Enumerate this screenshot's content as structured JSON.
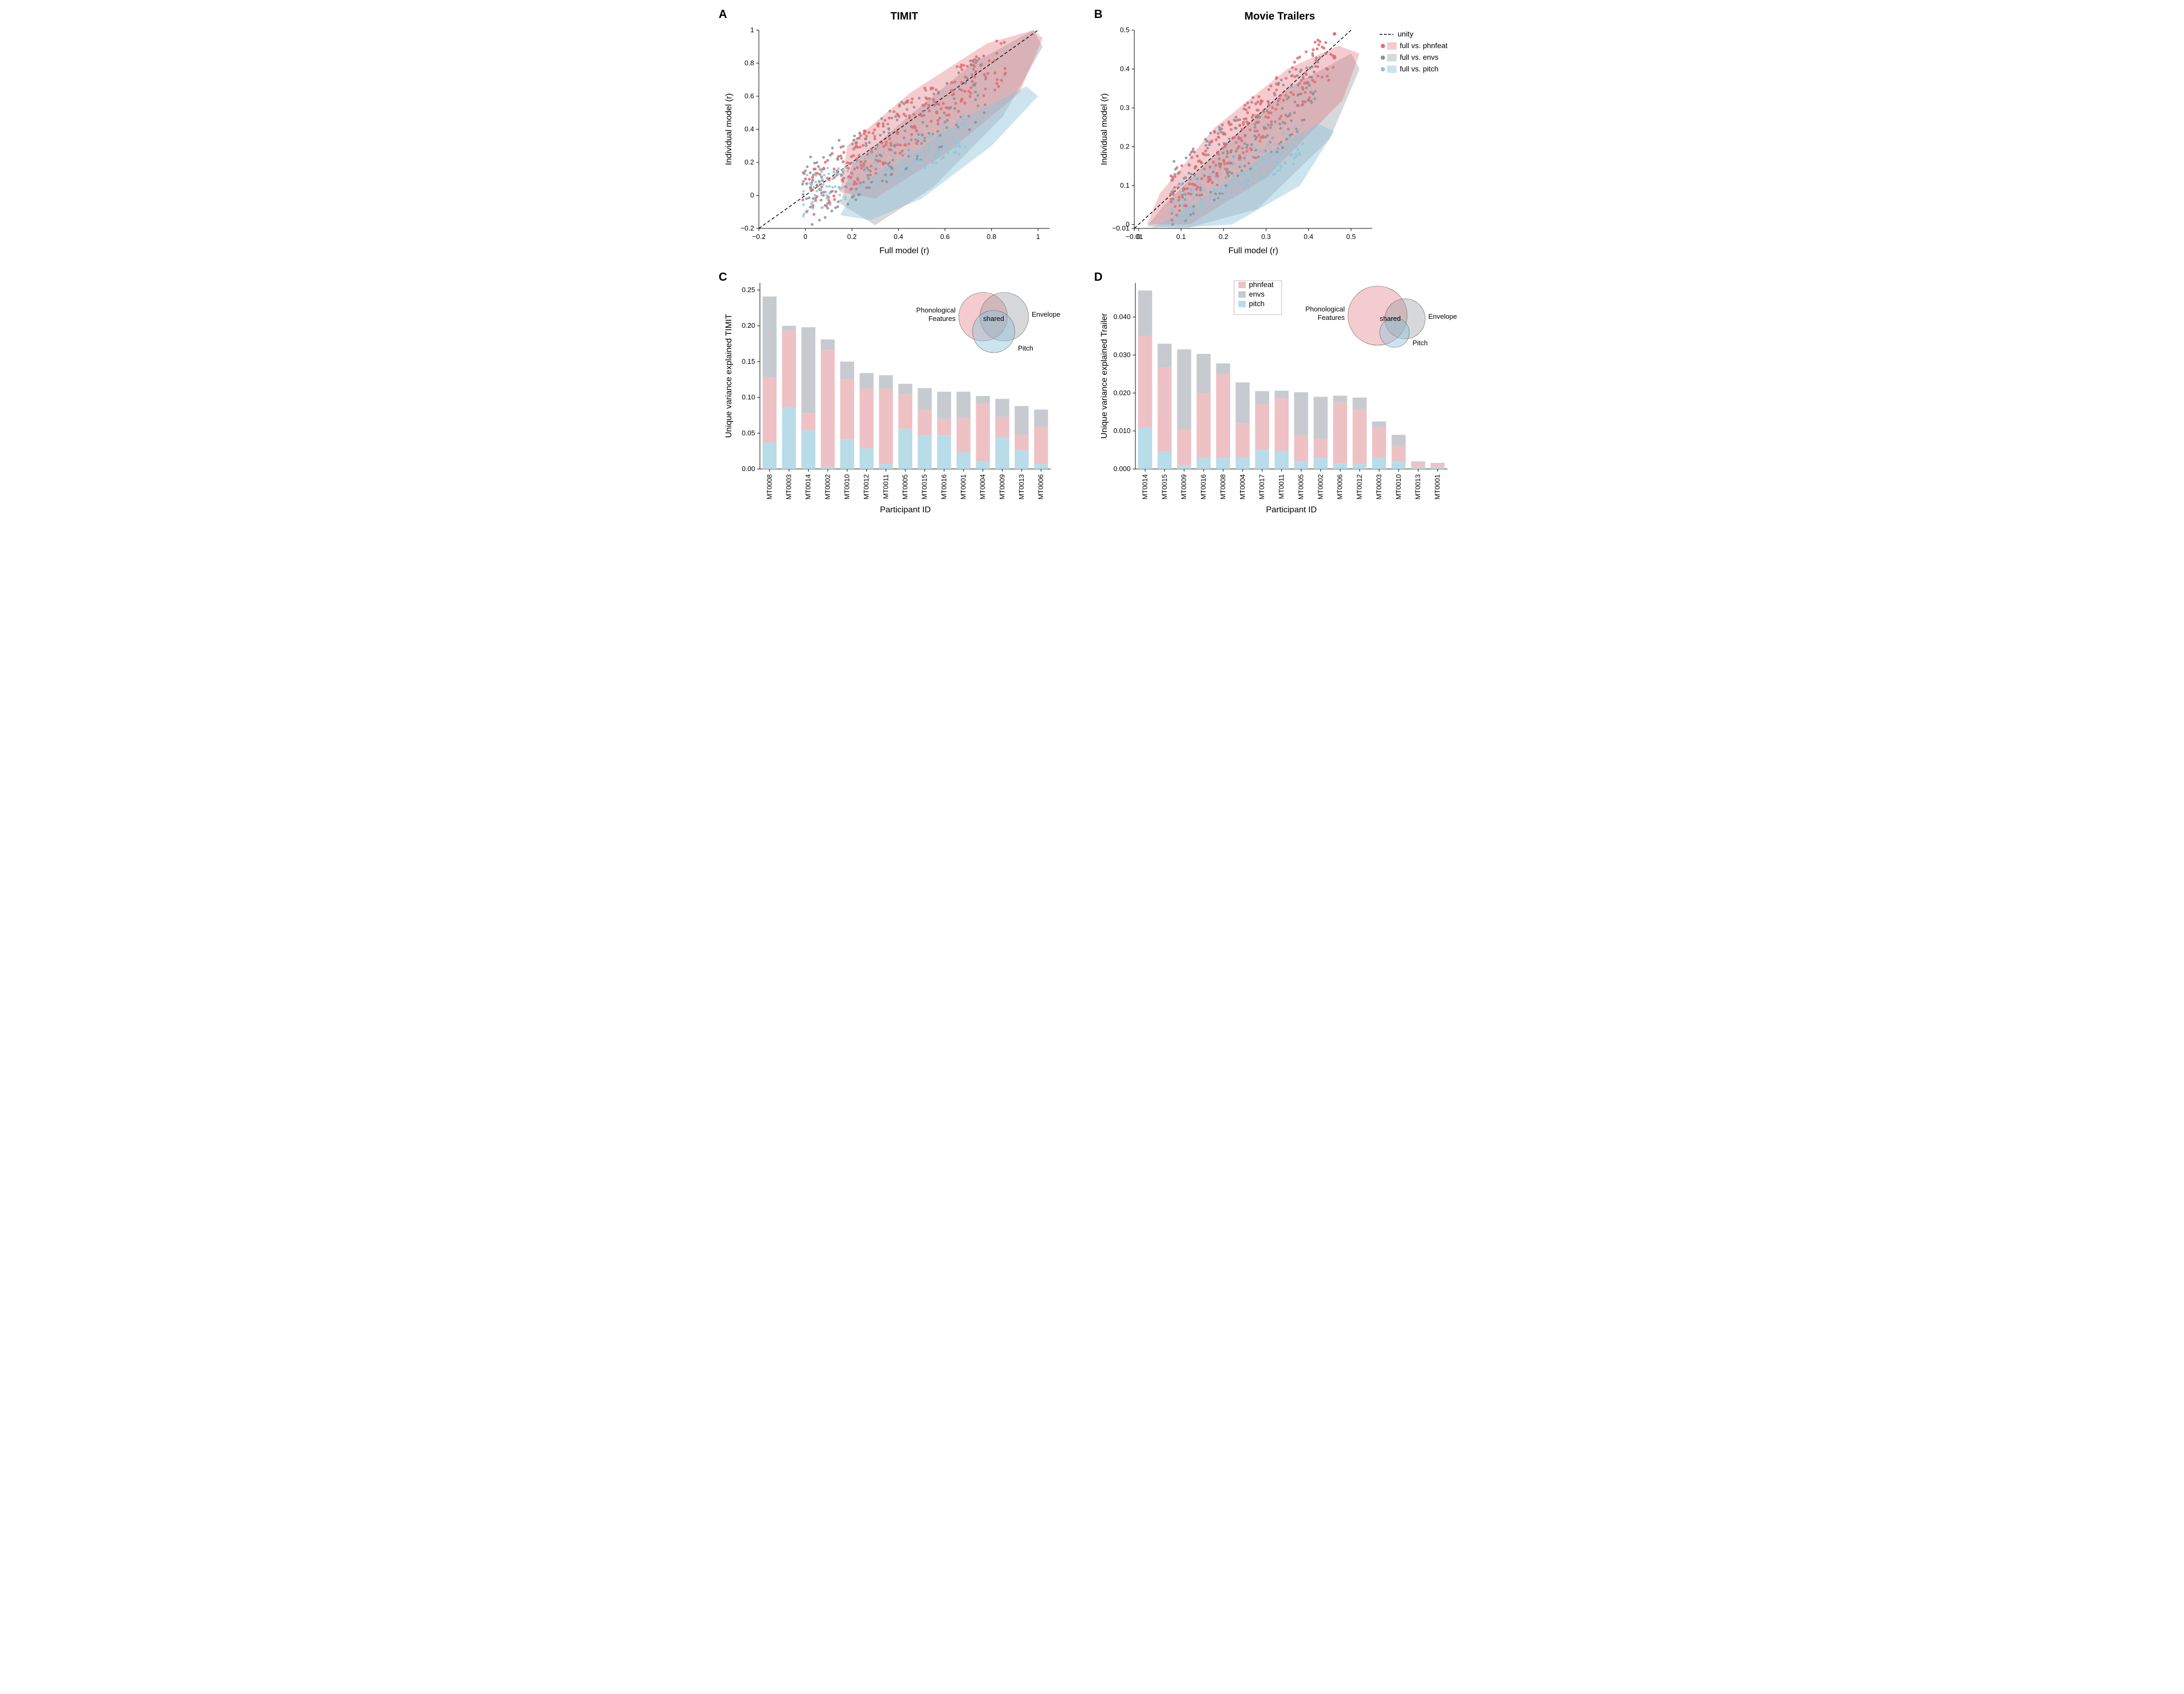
{
  "colors": {
    "phnfeat": "#e06c75",
    "phnfeat_fill": "rgba(224,108,117,0.35)",
    "envs": "#8a8f94",
    "envs_fill": "rgba(138,143,148,0.35)",
    "pitch": "#8fc4d9",
    "pitch_fill": "rgba(143,196,217,0.45)",
    "unity": "#000000",
    "grid": "#ffffff",
    "background": "#ffffff",
    "text": "#000000"
  },
  "legend_scatter": {
    "unity": "unity",
    "phnfeat": "full vs. phnfeat",
    "envs": "full vs. envs",
    "pitch": "full vs. pitch"
  },
  "legend_bar": {
    "phnfeat": "phnfeat",
    "envs": "envs",
    "pitch": "pitch"
  },
  "panels": {
    "A": {
      "label": "A",
      "title": "TIMIT",
      "type": "scatter",
      "xlabel": "Full model (r)",
      "ylabel": "Individual model (r)",
      "xlim": [
        -0.2,
        1.05
      ],
      "ylim": [
        -0.2,
        1.0
      ],
      "xticks": [
        -0.2,
        0.0,
        0.2,
        0.4,
        0.6,
        0.8,
        1.0
      ],
      "yticks": [
        -0.2,
        0.0,
        0.2,
        0.4,
        0.6,
        0.8,
        1.0
      ],
      "hull_phnfeat": [
        [
          0.15,
          0.02
        ],
        [
          0.18,
          0.3
        ],
        [
          0.45,
          0.62
        ],
        [
          0.78,
          0.92
        ],
        [
          0.98,
          1.0
        ],
        [
          1.02,
          0.95
        ],
        [
          0.92,
          0.62
        ],
        [
          0.62,
          0.27
        ],
        [
          0.3,
          -0.02
        ]
      ],
      "hull_envs": [
        [
          0.15,
          -0.05
        ],
        [
          0.2,
          0.18
        ],
        [
          0.42,
          0.45
        ],
        [
          0.72,
          0.8
        ],
        [
          0.98,
          1.0
        ],
        [
          1.02,
          0.9
        ],
        [
          0.85,
          0.48
        ],
        [
          0.55,
          0.05
        ],
        [
          0.3,
          -0.18
        ]
      ],
      "hull_pitch": [
        [
          0.15,
          -0.12
        ],
        [
          0.22,
          0.06
        ],
        [
          0.42,
          0.22
        ],
        [
          0.7,
          0.48
        ],
        [
          0.95,
          0.66
        ],
        [
          1.0,
          0.6
        ],
        [
          0.8,
          0.3
        ],
        [
          0.5,
          -0.02
        ],
        [
          0.28,
          -0.15
        ]
      ]
    },
    "B": {
      "label": "B",
      "title": "Movie Trailers",
      "type": "scatter",
      "xlabel": "Full model (r)",
      "ylabel": "Individual model (r)",
      "xlim": [
        -0.01,
        0.55
      ],
      "ylim": [
        -0.01,
        0.5
      ],
      "xticks": [
        -0.01,
        0.0,
        0.1,
        0.2,
        0.3,
        0.4,
        0.5
      ],
      "yticks": [
        -0.01,
        0.0,
        0.1,
        0.2,
        0.3,
        0.4,
        0.5
      ],
      "hull_phnfeat": [
        [
          0.02,
          0.0
        ],
        [
          0.05,
          0.08
        ],
        [
          0.18,
          0.25
        ],
        [
          0.35,
          0.4
        ],
        [
          0.47,
          0.46
        ],
        [
          0.52,
          0.44
        ],
        [
          0.48,
          0.32
        ],
        [
          0.3,
          0.12
        ],
        [
          0.12,
          0.0
        ]
      ],
      "hull_envs": [
        [
          0.02,
          -0.005
        ],
        [
          0.06,
          0.05
        ],
        [
          0.18,
          0.18
        ],
        [
          0.35,
          0.35
        ],
        [
          0.5,
          0.44
        ],
        [
          0.52,
          0.4
        ],
        [
          0.45,
          0.22
        ],
        [
          0.28,
          0.04
        ],
        [
          0.12,
          -0.008
        ]
      ],
      "hull_pitch": [
        [
          0.03,
          -0.008
        ],
        [
          0.08,
          0.02
        ],
        [
          0.18,
          0.09
        ],
        [
          0.3,
          0.18
        ],
        [
          0.42,
          0.26
        ],
        [
          0.46,
          0.24
        ],
        [
          0.38,
          0.1
        ],
        [
          0.22,
          0.0
        ],
        [
          0.1,
          -0.008
        ]
      ]
    },
    "C": {
      "label": "C",
      "type": "stacked-bar",
      "xlabel": "Participant ID",
      "ylabel": "Unique variance explained TIMIT",
      "ylim": [
        0,
        0.26
      ],
      "yticks": [
        0.0,
        0.05,
        0.1,
        0.15,
        0.2,
        0.25
      ],
      "categories": [
        "MT0008",
        "MT0003",
        "MT0014",
        "MT0002",
        "MT0010",
        "MT0012",
        "MT0011",
        "MT0005",
        "MT0015",
        "MT0016",
        "MT0001",
        "MT0004",
        "MT0009",
        "MT0013",
        "MT0006"
      ],
      "series": {
        "pitch": [
          0.037,
          0.086,
          0.054,
          0.003,
          0.042,
          0.029,
          0.007,
          0.056,
          0.047,
          0.047,
          0.023,
          0.011,
          0.044,
          0.026,
          0.007
        ],
        "phnfeat": [
          0.091,
          0.107,
          0.024,
          0.163,
          0.083,
          0.083,
          0.105,
          0.048,
          0.035,
          0.023,
          0.048,
          0.08,
          0.029,
          0.022,
          0.052
        ],
        "envs": [
          0.113,
          0.007,
          0.12,
          0.015,
          0.025,
          0.022,
          0.019,
          0.015,
          0.031,
          0.038,
          0.037,
          0.011,
          0.025,
          0.04,
          0.024
        ]
      },
      "venn": {
        "labels": {
          "features": "Phonological\nFeatures",
          "envelope": "Envelope",
          "pitch": "Pitch",
          "shared": "shared"
        },
        "radii": {
          "features": 46,
          "envelope": 46,
          "pitch": 40
        },
        "offsets": {
          "features": [
            -18,
            -6
          ],
          "envelope": [
            22,
            -6
          ],
          "pitch": [
            2,
            22
          ]
        }
      }
    },
    "D": {
      "label": "D",
      "type": "stacked-bar",
      "xlabel": "Participant ID",
      "ylabel": "Unique variance explained Trailer",
      "ylim": [
        0,
        0.049
      ],
      "yticks": [
        0.0,
        0.01,
        0.02,
        0.03,
        0.04
      ],
      "categories": [
        "MT0014",
        "MT0015",
        "MT0009",
        "MT0016",
        "MT0008",
        "MT0004",
        "MT0017",
        "MT0011",
        "MT0005",
        "MT0002",
        "MT0006",
        "MT0012",
        "MT0003",
        "MT0010",
        "MT0013",
        "MT0001"
      ],
      "series": {
        "pitch": [
          0.011,
          0.0045,
          0.001,
          0.003,
          0.003,
          0.003,
          0.005,
          0.0048,
          0.002,
          0.003,
          0.0015,
          0.0013,
          0.003,
          0.002,
          0.0005,
          0.0005
        ],
        "phnfeat": [
          0.024,
          0.0222,
          0.0095,
          0.017,
          0.022,
          0.009,
          0.012,
          0.0138,
          0.0068,
          0.005,
          0.016,
          0.0145,
          0.008,
          0.004,
          0.0012,
          0.0008
        ],
        "envs": [
          0.012,
          0.0063,
          0.021,
          0.0103,
          0.0028,
          0.0108,
          0.0035,
          0.002,
          0.0114,
          0.011,
          0.0018,
          0.003,
          0.0015,
          0.003,
          0.0003,
          0.0003
        ]
      },
      "venn": {
        "labels": {
          "features": "Phonological\nFeatures",
          "envelope": "Envelope",
          "pitch": "Pitch",
          "shared": "shared"
        },
        "radii": {
          "features": 56,
          "envelope": 38,
          "pitch": 28
        },
        "offsets": {
          "features": [
            -22,
            -8
          ],
          "envelope": [
            30,
            -2
          ],
          "pitch": [
            10,
            24
          ]
        }
      }
    }
  },
  "scatter_density": {
    "A": 220,
    "B": 220
  },
  "typography": {
    "title_fontsize": 20,
    "label_fontsize": 16,
    "tick_fontsize": 13,
    "legend_fontsize": 14
  }
}
